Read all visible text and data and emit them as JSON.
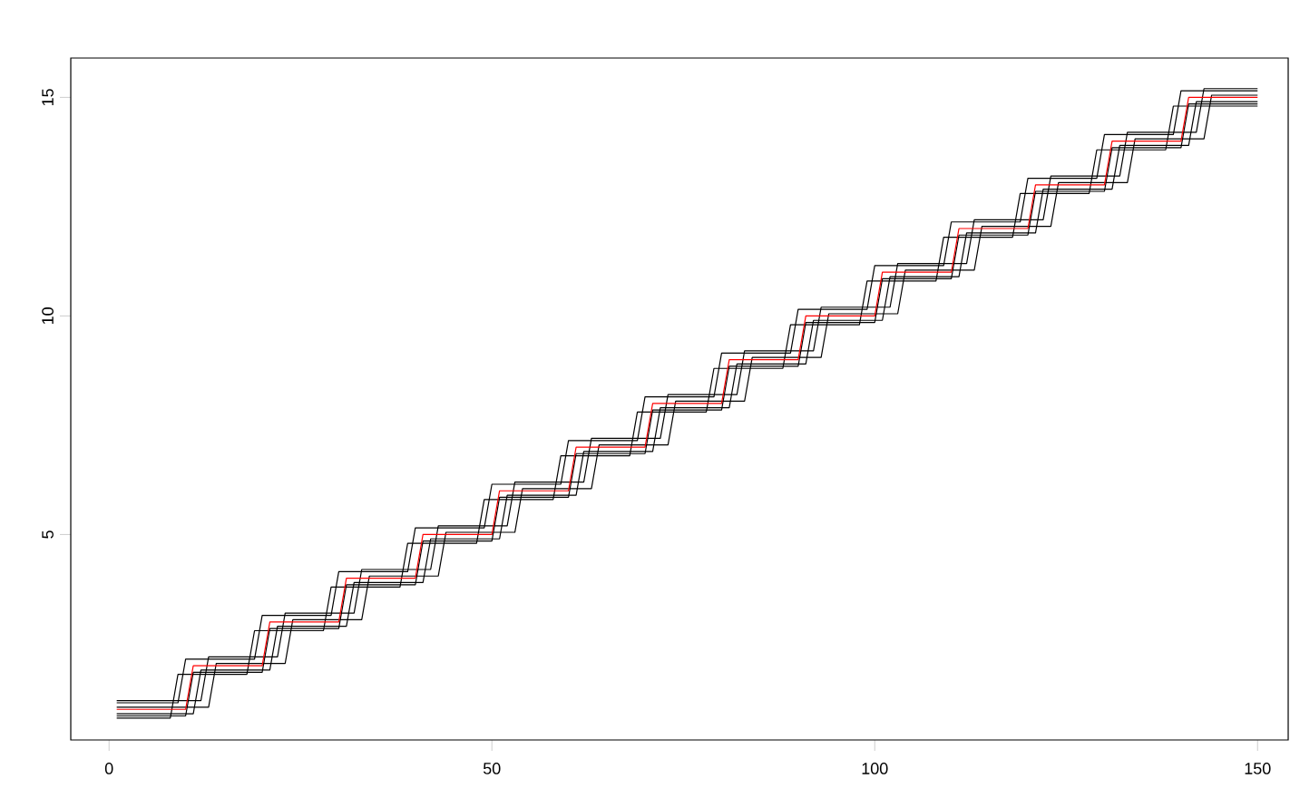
{
  "chart_data": {
    "type": "line",
    "xlim": [
      -5,
      154
    ],
    "ylim": [
      0.3,
      15.9
    ],
    "xticks": [
      0,
      50,
      100,
      150
    ],
    "yticks": [
      5,
      10,
      15
    ],
    "series": [
      {
        "color": "#000000",
        "x": [
          1,
          8,
          9,
          18,
          19,
          28,
          29,
          38,
          39,
          48,
          49,
          58,
          59,
          68,
          69,
          78,
          79,
          88,
          89,
          98,
          99,
          108,
          109,
          118,
          119,
          128,
          129,
          138,
          139,
          150
        ],
        "values": [
          0.8,
          0.8,
          1.8,
          1.8,
          2.8,
          2.8,
          3.8,
          3.8,
          4.8,
          4.8,
          5.8,
          5.8,
          6.8,
          6.8,
          7.8,
          7.8,
          8.8,
          8.8,
          9.8,
          9.8,
          10.8,
          10.8,
          11.8,
          11.8,
          12.8,
          12.8,
          13.8,
          13.8,
          14.8,
          14.8
        ]
      },
      {
        "color": "#000000",
        "x": [
          1,
          9,
          10,
          19,
          20,
          29,
          30,
          39,
          40,
          49,
          50,
          59,
          60,
          69,
          70,
          79,
          80,
          89,
          90,
          99,
          100,
          109,
          110,
          119,
          120,
          129,
          130,
          139,
          140,
          150
        ],
        "values": [
          1.15,
          1.15,
          2.15,
          2.15,
          3.15,
          3.15,
          4.15,
          4.15,
          5.15,
          5.15,
          6.15,
          6.15,
          7.15,
          7.15,
          8.15,
          8.15,
          9.15,
          9.15,
          10.15,
          10.15,
          11.15,
          11.15,
          12.15,
          12.15,
          13.15,
          13.15,
          14.15,
          14.15,
          15.15,
          15.15
        ]
      },
      {
        "color": "#000000",
        "x": [
          1,
          11,
          12,
          21,
          22,
          31,
          32,
          41,
          42,
          51,
          52,
          61,
          62,
          71,
          72,
          81,
          82,
          91,
          92,
          101,
          102,
          111,
          112,
          121,
          122,
          131,
          132,
          141,
          142,
          150
        ],
        "values": [
          0.9,
          0.9,
          1.9,
          1.9,
          2.9,
          2.9,
          3.9,
          3.9,
          4.9,
          4.9,
          5.9,
          5.9,
          6.9,
          6.9,
          7.9,
          7.9,
          8.9,
          8.9,
          9.9,
          9.9,
          10.9,
          10.9,
          11.9,
          11.9,
          12.9,
          12.9,
          13.9,
          13.9,
          14.9,
          14.9
        ]
      },
      {
        "color": "#000000",
        "x": [
          1,
          12,
          13,
          22,
          23,
          32,
          33,
          42,
          43,
          52,
          53,
          62,
          63,
          72,
          73,
          82,
          83,
          92,
          93,
          102,
          103,
          112,
          113,
          122,
          123,
          132,
          133,
          142,
          143,
          150
        ],
        "values": [
          1.2,
          1.2,
          2.2,
          2.2,
          3.2,
          3.2,
          4.2,
          4.2,
          5.2,
          5.2,
          6.2,
          6.2,
          7.2,
          7.2,
          8.2,
          8.2,
          9.2,
          9.2,
          10.2,
          10.2,
          11.2,
          11.2,
          12.2,
          12.2,
          13.2,
          13.2,
          14.2,
          14.2,
          15.2,
          15.2
        ]
      },
      {
        "color": "#000000",
        "x": [
          1,
          13,
          14,
          23,
          24,
          33,
          34,
          43,
          44,
          53,
          54,
          63,
          64,
          73,
          74,
          83,
          84,
          93,
          94,
          103,
          104,
          113,
          114,
          123,
          124,
          133,
          134,
          143,
          144,
          150
        ],
        "values": [
          1.05,
          1.05,
          2.05,
          2.05,
          3.05,
          3.05,
          4.05,
          4.05,
          5.05,
          5.05,
          6.05,
          6.05,
          7.05,
          7.05,
          8.05,
          8.05,
          9.05,
          9.05,
          10.05,
          10.05,
          11.05,
          11.05,
          12.05,
          12.05,
          13.05,
          13.05,
          14.05,
          14.05,
          15.05,
          15.05
        ]
      },
      {
        "color": "#000000",
        "x": [
          1,
          10,
          11,
          20,
          21,
          30,
          31,
          40,
          41,
          50,
          51,
          60,
          61,
          70,
          71,
          80,
          81,
          90,
          91,
          100,
          101,
          110,
          111,
          120,
          121,
          130,
          131,
          140,
          141,
          150
        ],
        "values": [
          0.85,
          0.85,
          1.85,
          1.85,
          2.85,
          2.85,
          3.85,
          3.85,
          4.85,
          4.85,
          5.85,
          5.85,
          6.85,
          6.85,
          7.85,
          7.85,
          8.85,
          8.85,
          9.85,
          9.85,
          10.85,
          10.85,
          11.85,
          11.85,
          12.85,
          12.85,
          13.85,
          13.85,
          14.85,
          14.85
        ]
      },
      {
        "color": "#ff0000",
        "x": [
          1,
          10,
          11,
          20,
          21,
          30,
          31,
          40,
          41,
          50,
          51,
          60,
          61,
          70,
          71,
          80,
          81,
          90,
          91,
          100,
          101,
          110,
          111,
          120,
          121,
          130,
          131,
          140,
          141,
          150
        ],
        "values": [
          1,
          1,
          2,
          2,
          3,
          3,
          4,
          4,
          5,
          5,
          6,
          6,
          7,
          7,
          8,
          8,
          9,
          9,
          10,
          10,
          11,
          11,
          12,
          12,
          13,
          13,
          14,
          14,
          15,
          15
        ]
      }
    ]
  }
}
